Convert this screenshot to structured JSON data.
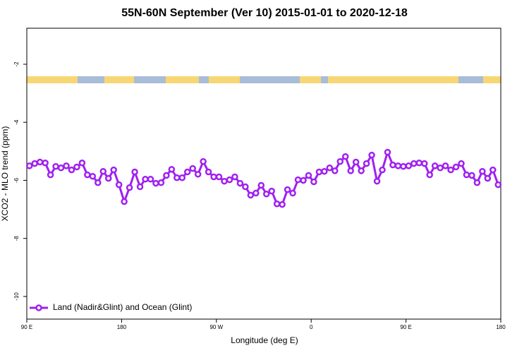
{
  "chart_data": {
    "type": "line",
    "title": "55N-60N September (Ver 10)   2015-01-01 to 2020-12-18",
    "xlabel": "Longitude (deg E)",
    "ylabel": "XCO2 - MLO trend (ppm)",
    "legend": "bottom-left",
    "xlim": [
      90,
      540
    ],
    "ylim": [
      -10.78,
      -0.76
    ],
    "xticks": [
      {
        "value": 90,
        "label": "90 E"
      },
      180,
      {
        "value": 270,
        "label": "90 W"
      },
      {
        "value": 360,
        "label": "0"
      },
      {
        "value": 450,
        "label": "90 E"
      },
      {
        "value": 540,
        "label": "180"
      }
    ],
    "yticks": [
      -10,
      -8,
      -6,
      -4,
      -2
    ],
    "x": [
      92.5,
      97.5,
      102.5,
      107.5,
      112.5,
      117.5,
      122.5,
      127.5,
      132.5,
      137.5,
      142.5,
      147.5,
      152.5,
      157.5,
      162.5,
      167.5,
      172.5,
      177.5,
      182.5,
      187.5,
      192.5,
      197.5,
      202.5,
      207.5,
      212.5,
      217.5,
      222.5,
      227.5,
      232.5,
      237.5,
      242.5,
      247.5,
      252.5,
      257.5,
      262.5,
      267.5,
      272.5,
      277.5,
      282.5,
      287.5,
      292.5,
      297.5,
      302.5,
      307.5,
      312.5,
      317.5,
      322.5,
      327.5,
      332.5,
      337.5,
      342.5,
      347.5,
      352.5,
      357.5,
      362.5,
      367.5,
      372.5,
      377.5,
      382.5,
      387.5,
      392.5,
      397.5,
      402.5,
      407.5,
      412.5,
      417.5,
      422.5,
      427.5,
      432.5,
      437.5,
      442.5,
      447.5,
      452.5,
      457.5,
      462.5,
      467.5,
      472.5,
      477.5,
      482.5,
      487.5,
      492.5,
      497.5,
      502.5,
      507.5,
      512.5,
      517.5,
      522.5,
      527.5,
      532.5,
      537.5
    ],
    "series": [
      {
        "name": "Land (Nadir&Glint) and Ocean (Glint)",
        "color": "#a020f0",
        "values": [
          -5.5,
          -5.42,
          -5.37,
          -5.4,
          -5.81,
          -5.52,
          -5.57,
          -5.5,
          -5.64,
          -5.54,
          -5.4,
          -5.81,
          -5.86,
          -6.08,
          -5.69,
          -5.93,
          -5.64,
          -6.15,
          -6.73,
          -6.25,
          -5.71,
          -6.22,
          -5.96,
          -5.96,
          -6.1,
          -6.08,
          -5.83,
          -5.62,
          -5.91,
          -5.91,
          -5.71,
          -5.59,
          -5.79,
          -5.35,
          -5.71,
          -5.88,
          -5.88,
          -6.03,
          -5.98,
          -5.88,
          -6.1,
          -6.22,
          -6.51,
          -6.44,
          -6.17,
          -6.47,
          -6.37,
          -6.81,
          -6.83,
          -6.32,
          -6.44,
          -5.98,
          -6.0,
          -5.83,
          -6.05,
          -5.71,
          -5.69,
          -5.57,
          -5.67,
          -5.35,
          -5.18,
          -5.67,
          -5.37,
          -5.67,
          -5.42,
          -5.13,
          -6.03,
          -5.64,
          -5.03,
          -5.47,
          -5.5,
          -5.52,
          -5.5,
          -5.42,
          -5.4,
          -5.42,
          -5.81,
          -5.5,
          -5.57,
          -5.5,
          -5.64,
          -5.54,
          -5.42,
          -5.81,
          -5.83,
          -6.08,
          -5.69,
          -5.93,
          -5.64,
          -6.15
        ]
      }
    ]
  }
}
